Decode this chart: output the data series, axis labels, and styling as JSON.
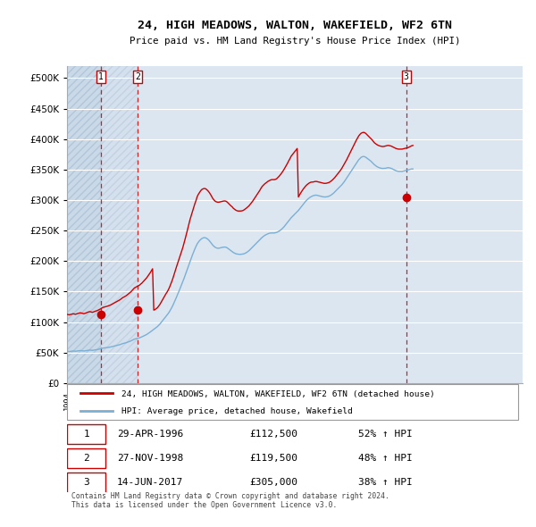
{
  "title": "24, HIGH MEADOWS, WALTON, WAKEFIELD, WF2 6TN",
  "subtitle": "Price paid vs. HM Land Registry's House Price Index (HPI)",
  "yticks": [
    0,
    50000,
    100000,
    150000,
    200000,
    250000,
    300000,
    350000,
    400000,
    450000,
    500000
  ],
  "xmin": 1994.0,
  "xmax": 2025.5,
  "ymin": 0,
  "ymax": 520000,
  "background_color": "#ffffff",
  "plot_bg_color": "#dce6f1",
  "grid_color": "#ffffff",
  "purchase_color": "#cc0000",
  "hpi_color": "#7bafd4",
  "dashed_line_color": "#cc0000",
  "legend_entry1": "24, HIGH MEADOWS, WALTON, WAKEFIELD, WF2 6TN (detached house)",
  "legend_entry2": "HPI: Average price, detached house, Wakefield",
  "purchases": [
    {
      "num": 1,
      "date": "29-APR-1996",
      "price": 112500,
      "year": 1996.33
    },
    {
      "num": 2,
      "date": "27-NOV-1998",
      "price": 119500,
      "year": 1998.9
    },
    {
      "num": 3,
      "date": "14-JUN-2017",
      "price": 305000,
      "year": 2017.45
    }
  ],
  "table_rows": [
    {
      "num": 1,
      "date": "29-APR-1996",
      "price": "£112,500",
      "change": "52% ↑ HPI"
    },
    {
      "num": 2,
      "date": "27-NOV-1998",
      "price": "£119,500",
      "change": "48% ↑ HPI"
    },
    {
      "num": 3,
      "date": "14-JUN-2017",
      "price": "£305,000",
      "change": "38% ↑ HPI"
    }
  ],
  "footer": "Contains HM Land Registry data © Crown copyright and database right 2024.\nThis data is licensed under the Open Government Licence v3.0.",
  "hpi_monthly": {
    "start_year": 1994.0,
    "values": [
      52000,
      51800,
      51600,
      51900,
      52200,
      52500,
      52300,
      52100,
      52400,
      52700,
      53000,
      53200,
      53000,
      52800,
      52500,
      52800,
      53100,
      53500,
      53800,
      54000,
      53700,
      53500,
      53800,
      54200,
      54500,
      54800,
      55200,
      55700,
      56200,
      56800,
      57300,
      57500,
      57800,
      58000,
      58300,
      58700,
      59000,
      59500,
      60000,
      60500,
      61000,
      61500,
      62000,
      62500,
      63000,
      63800,
      64500,
      65000,
      65500,
      66000,
      66800,
      67500,
      68200,
      69000,
      70000,
      71000,
      72000,
      72500,
      73000,
      73500,
      74000,
      74800,
      75500,
      76500,
      77500,
      78500,
      79500,
      80800,
      82000,
      83500,
      85000,
      86500,
      88000,
      89500,
      91000,
      92500,
      94500,
      96500,
      99000,
      101500,
      104000,
      106500,
      109000,
      111500,
      114000,
      117000,
      120500,
      124000,
      128000,
      132500,
      137000,
      141500,
      146500,
      151000,
      156000,
      161000,
      166000,
      171000,
      176500,
      182000,
      187500,
      193000,
      198500,
      204000,
      209500,
      214500,
      219500,
      224000,
      228000,
      231000,
      233500,
      235500,
      237000,
      238000,
      238500,
      238000,
      237000,
      235500,
      233500,
      231000,
      228500,
      226000,
      224000,
      222500,
      221500,
      221000,
      221000,
      221500,
      222000,
      222500,
      222800,
      223000,
      222500,
      221500,
      220000,
      218500,
      217000,
      215500,
      214000,
      213000,
      212000,
      211500,
      211200,
      211000,
      211000,
      211200,
      211500,
      212000,
      213000,
      214000,
      215500,
      217000,
      219000,
      221000,
      223000,
      225000,
      227000,
      229000,
      231000,
      233000,
      235000,
      237000,
      239000,
      240500,
      242000,
      243000,
      244000,
      245000,
      245500,
      246000,
      246000,
      246000,
      246000,
      246500,
      247000,
      248000,
      249000,
      250500,
      252000,
      254000,
      256000,
      258500,
      261000,
      263500,
      266000,
      268500,
      271000,
      273000,
      275000,
      277000,
      279000,
      281000,
      283000,
      285500,
      288000,
      290500,
      293000,
      295500,
      298000,
      300000,
      302000,
      303500,
      305000,
      306000,
      307000,
      307500,
      308000,
      308000,
      307500,
      307000,
      306500,
      306000,
      305500,
      305200,
      305000,
      305200,
      305500,
      306000,
      307000,
      308000,
      309500,
      311000,
      313000,
      315000,
      317000,
      319000,
      321000,
      323000,
      325000,
      327500,
      330000,
      333000,
      336000,
      339000,
      342000,
      345000,
      348000,
      351000,
      354000,
      357000,
      360000,
      363000,
      366000,
      368000,
      370000,
      371000,
      371500,
      371000,
      370000,
      368500,
      367000,
      365500,
      364000,
      362000,
      360000,
      358000,
      356500,
      355000,
      354000,
      353000,
      352500,
      352000,
      351800,
      352000,
      352000,
      352500,
      353000,
      353000,
      352500,
      352000,
      351000,
      350000,
      349000,
      348000,
      347500,
      347000,
      347000,
      347000,
      347000,
      347500,
      348000,
      348500,
      349000,
      349500,
      350000,
      350500,
      351000,
      351000
    ]
  },
  "price_paid_monthly": {
    "start_year": 1994.0,
    "values": [
      112500,
      112200,
      111900,
      112400,
      112900,
      113600,
      113200,
      112700,
      113400,
      114000,
      114600,
      115100,
      114700,
      114200,
      113600,
      114300,
      115000,
      115900,
      116600,
      117100,
      116500,
      115900,
      116500,
      117400,
      118000,
      118700,
      119600,
      120600,
      121700,
      123000,
      124100,
      124500,
      125200,
      125600,
      126300,
      127100,
      127800,
      128900,
      130000,
      131100,
      132100,
      133200,
      134400,
      135400,
      136500,
      138200,
      139700,
      140800,
      141900,
      143000,
      144700,
      146200,
      147800,
      149500,
      151700,
      153800,
      156000,
      157000,
      158200,
      159200,
      160200,
      162000,
      163500,
      165700,
      167900,
      170100,
      172200,
      175000,
      177600,
      180700,
      184000,
      187300,
      119500,
      120400,
      121900,
      123400,
      125900,
      128600,
      132100,
      135500,
      139000,
      142500,
      146000,
      149000,
      152500,
      156700,
      161700,
      166800,
      172500,
      179000,
      185000,
      191500,
      197500,
      203500,
      209500,
      215500,
      221500,
      228500,
      236000,
      243500,
      251500,
      259500,
      267500,
      274000,
      280500,
      287000,
      293500,
      299000,
      305500,
      309500,
      312500,
      315500,
      317500,
      318500,
      319000,
      318500,
      317000,
      315000,
      312500,
      309500,
      306000,
      302500,
      300000,
      298000,
      297000,
      296500,
      296500,
      297000,
      297500,
      298000,
      298400,
      298500,
      298000,
      296500,
      294500,
      292500,
      290500,
      289000,
      286500,
      285000,
      283500,
      282500,
      282000,
      282000,
      282000,
      282300,
      282800,
      284000,
      285500,
      287000,
      288800,
      290500,
      293000,
      295500,
      298000,
      301000,
      304000,
      307000,
      310000,
      313000,
      316000,
      319500,
      322500,
      324500,
      326500,
      328000,
      329500,
      331000,
      332000,
      333000,
      333500,
      333500,
      333500,
      334000,
      335000,
      337000,
      339000,
      341500,
      344000,
      347000,
      350000,
      353500,
      357000,
      360500,
      364500,
      368000,
      372000,
      374500,
      377000,
      379500,
      382000,
      384500,
      305000,
      308500,
      312000,
      315000,
      318000,
      320500,
      323000,
      325000,
      326500,
      328000,
      329000,
      329500,
      329500,
      330000,
      330500,
      330500,
      330000,
      329500,
      329000,
      328500,
      328000,
      327500,
      327300,
      327500,
      328000,
      328500,
      329500,
      331000,
      332500,
      334500,
      336500,
      339000,
      341500,
      344000,
      346500,
      349000,
      352000,
      355500,
      359000,
      362500,
      366000,
      370000,
      374000,
      378000,
      382000,
      386000,
      390000,
      394000,
      398000,
      401500,
      405000,
      407500,
      409500,
      410500,
      411000,
      410500,
      409000,
      407000,
      405000,
      403000,
      401000,
      399000,
      396500,
      394000,
      392500,
      391000,
      390000,
      389000,
      388500,
      388000,
      387800,
      388000,
      388500,
      389000,
      389500,
      389500,
      389000,
      388500,
      387500,
      386500,
      385500,
      384500,
      384000,
      383500,
      383500,
      383500,
      383500,
      384000,
      384500,
      385000,
      385500,
      386000,
      387000,
      388000,
      389000,
      389500
    ]
  }
}
